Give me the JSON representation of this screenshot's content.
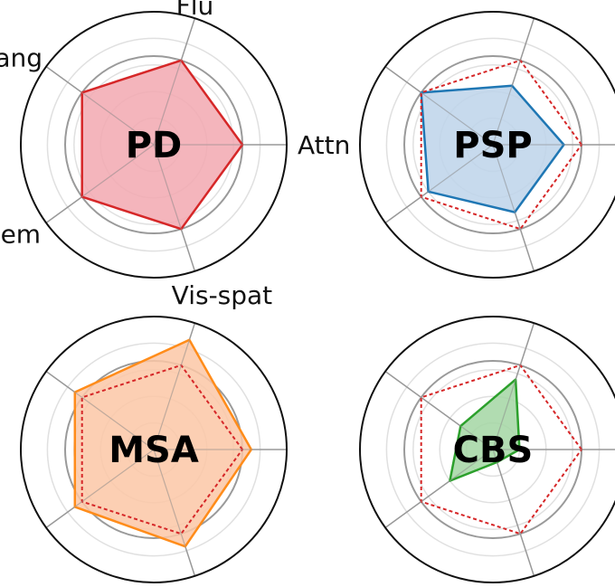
{
  "chart_data": {
    "type": "radar",
    "axes": [
      "Attn",
      "Flu",
      "Lang",
      "Mem",
      "Vis-spat"
    ],
    "rlim": [
      0,
      1.5
    ],
    "grid": true,
    "reference_color": "#d62728",
    "panels": [
      {
        "name": "PD",
        "color": "#d62728",
        "fill": "#f2a8b0",
        "values": [
          1.0,
          1.0,
          1.0,
          1.0,
          1.0
        ],
        "show_axis_labels": true,
        "show_reference": false
      },
      {
        "name": "PSP",
        "color": "#1f77b4",
        "fill": "#bdd4ea",
        "values": [
          0.8,
          0.7,
          1.0,
          0.9,
          0.8
        ],
        "show_axis_labels": false,
        "show_reference": true
      },
      {
        "name": "MSA",
        "color": "#ff8c1a",
        "fill": "#fbc7a6",
        "values": [
          1.1,
          1.3,
          1.1,
          1.1,
          1.15
        ],
        "show_axis_labels": false,
        "show_reference": true
      },
      {
        "name": "CBS",
        "color": "#2ca02c",
        "fill": "#a3d6a3",
        "values": [
          0.3,
          0.83,
          0.45,
          0.6,
          0.15
        ],
        "show_axis_labels": false,
        "show_reference": true
      }
    ]
  }
}
